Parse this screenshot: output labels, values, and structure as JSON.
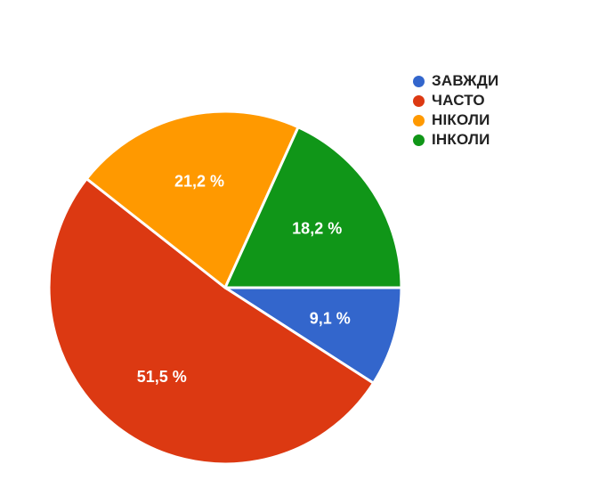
{
  "chart_data": {
    "type": "pie",
    "title": "",
    "legend_position": "top-right",
    "slices": [
      {
        "label": "ЗАВЖДИ",
        "value": 9.1,
        "value_label": "9,1 %",
        "color": "#3366CC"
      },
      {
        "label": "ЧАСТО",
        "value": 51.5,
        "value_label": "51,5 %",
        "color": "#DC3912"
      },
      {
        "label": "НІКОЛИ",
        "value": 21.2,
        "value_label": "21,2 %",
        "color": "#FF9900"
      },
      {
        "label": "ІНКОЛИ",
        "value": 18.2,
        "value_label": "18,2 %",
        "color": "#109618"
      }
    ]
  }
}
